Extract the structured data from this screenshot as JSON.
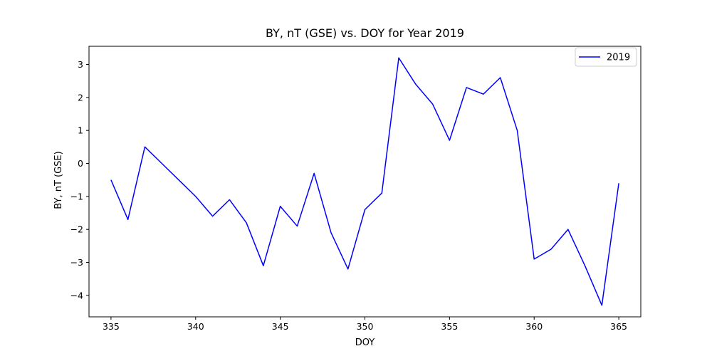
{
  "chart_data": {
    "type": "line",
    "title": "BY, nT (GSE) vs. DOY for Year 2019",
    "xlabel": "DOY",
    "ylabel": "BY, nT (GSE)",
    "xlim": [
      333.7,
      366.3
    ],
    "ylim": [
      -4.65,
      3.55
    ],
    "xticks": [
      335,
      340,
      345,
      350,
      355,
      360,
      365
    ],
    "yticks": [
      -4,
      -3,
      -2,
      -1,
      0,
      1,
      2,
      3
    ],
    "xtick_labels": [
      "335",
      "340",
      "345",
      "350",
      "355",
      "360",
      "365"
    ],
    "ytick_labels": [
      "−4",
      "−3",
      "−2",
      "−1",
      "0",
      "1",
      "2",
      "3"
    ],
    "grid": false,
    "legend_position": "top-right",
    "series": [
      {
        "name": "2019",
        "color": "#0000ff",
        "x": [
          335,
          336,
          337,
          338,
          339,
          340,
          341,
          342,
          343,
          344,
          345,
          346,
          347,
          348,
          349,
          350,
          351,
          352,
          353,
          354,
          355,
          356,
          357,
          358,
          359,
          360,
          361,
          362,
          363,
          364,
          365
        ],
        "y": [
          -0.5,
          -1.7,
          0.5,
          0.0,
          -0.5,
          -1.0,
          -1.6,
          -1.1,
          -1.8,
          -3.1,
          -1.3,
          -1.9,
          -0.3,
          -2.1,
          -3.2,
          -1.4,
          -0.9,
          3.2,
          2.4,
          1.8,
          0.7,
          2.3,
          2.1,
          2.6,
          1.0,
          -2.9,
          -2.6,
          -2.0,
          -3.1,
          -4.3,
          -0.6
        ]
      }
    ]
  }
}
